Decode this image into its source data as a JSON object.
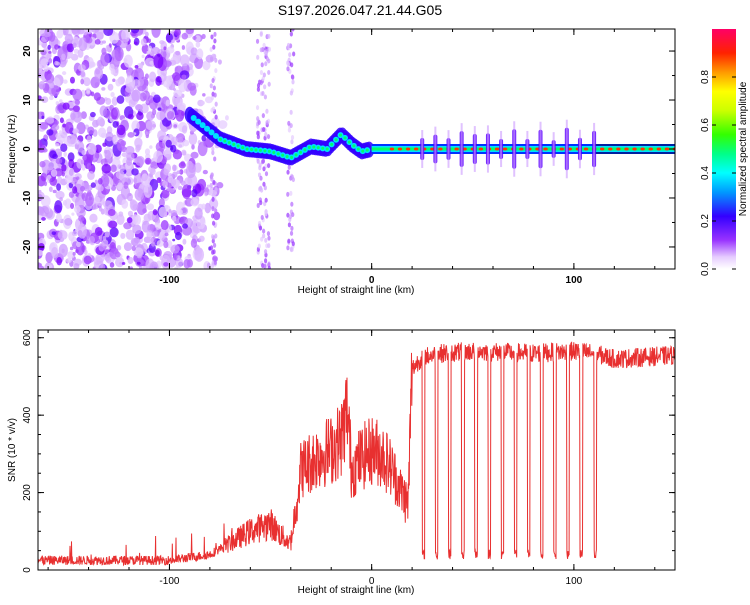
{
  "title": "S197.2026.047.21.44.G05",
  "chart_data": [
    {
      "type": "heatmap",
      "name": "spectrogram",
      "xlabel": "Height of straight line (km)",
      "ylabel": "Frequency (Hz)",
      "xlim": [
        -165,
        150
      ],
      "ylim": [
        -24.5,
        24.5
      ],
      "xticks": [
        -100,
        0,
        100
      ],
      "xtick_labels": [
        "-100",
        "0",
        "100"
      ],
      "yticks": [
        -20,
        -10,
        0,
        10,
        20
      ],
      "ytick_labels": [
        "-20",
        "-10",
        "0",
        "10",
        "20"
      ],
      "ridge": {
        "description": "dominant frequency ridge",
        "points": [
          [
            -90,
            7
          ],
          [
            -75,
            2
          ],
          [
            -62,
            0
          ],
          [
            -50,
            -0.5
          ],
          [
            -40,
            -1.8
          ],
          [
            -30,
            0.5
          ],
          [
            -22,
            0
          ],
          [
            -15,
            3
          ],
          [
            -10,
            1
          ],
          [
            -5,
            -0.5
          ],
          [
            0,
            0
          ],
          [
            150,
            0
          ]
        ]
      }
    },
    {
      "type": "colorbar",
      "name": "amplitude-colorbar",
      "label": "Normalized spectral amplitude",
      "range": [
        0,
        1
      ],
      "ticks": [
        0.0,
        0.2,
        0.4,
        0.6,
        0.8
      ],
      "tick_labels": [
        "0.0",
        "0.2",
        "0.4",
        "0.6",
        "0.8"
      ]
    },
    {
      "type": "line",
      "name": "snr-series",
      "xlabel": "Height of straight line (km)",
      "ylabel": "SNR (10 * v/v)",
      "xlim": [
        -165,
        150
      ],
      "ylim": [
        0,
        620
      ],
      "xticks": [
        -100,
        0,
        100
      ],
      "xtick_labels": [
        "-100",
        "0",
        "100"
      ],
      "yticks": [
        0,
        200,
        400,
        600
      ],
      "ytick_labels": [
        "0",
        "200",
        "400",
        "600"
      ],
      "color": "#e83030",
      "envelope": [
        [
          -165,
          25
        ],
        [
          -100,
          25
        ],
        [
          -80,
          40
        ],
        [
          -70,
          70
        ],
        [
          -60,
          100
        ],
        [
          -50,
          120
        ],
        [
          -45,
          90
        ],
        [
          -40,
          70
        ],
        [
          -35,
          260
        ],
        [
          -30,
          280
        ],
        [
          -25,
          300
        ],
        [
          -20,
          310
        ],
        [
          -15,
          340
        ],
        [
          -12,
          420
        ],
        [
          -10,
          260
        ],
        [
          -5,
          290
        ],
        [
          0,
          310
        ],
        [
          5,
          300
        ],
        [
          10,
          260
        ],
        [
          15,
          200
        ],
        [
          18,
          170
        ],
        [
          20,
          520
        ],
        [
          25,
          550
        ],
        [
          35,
          560
        ],
        [
          50,
          565
        ],
        [
          80,
          560
        ],
        [
          100,
          565
        ],
        [
          110,
          560
        ],
        [
          120,
          545
        ],
        [
          150,
          555
        ]
      ],
      "dips": [
        25,
        31.5,
        38,
        44.5,
        51,
        57.5,
        64,
        70.5,
        77,
        83.5,
        90,
        96.5,
        103,
        110
      ],
      "dip_level": 40
    }
  ]
}
